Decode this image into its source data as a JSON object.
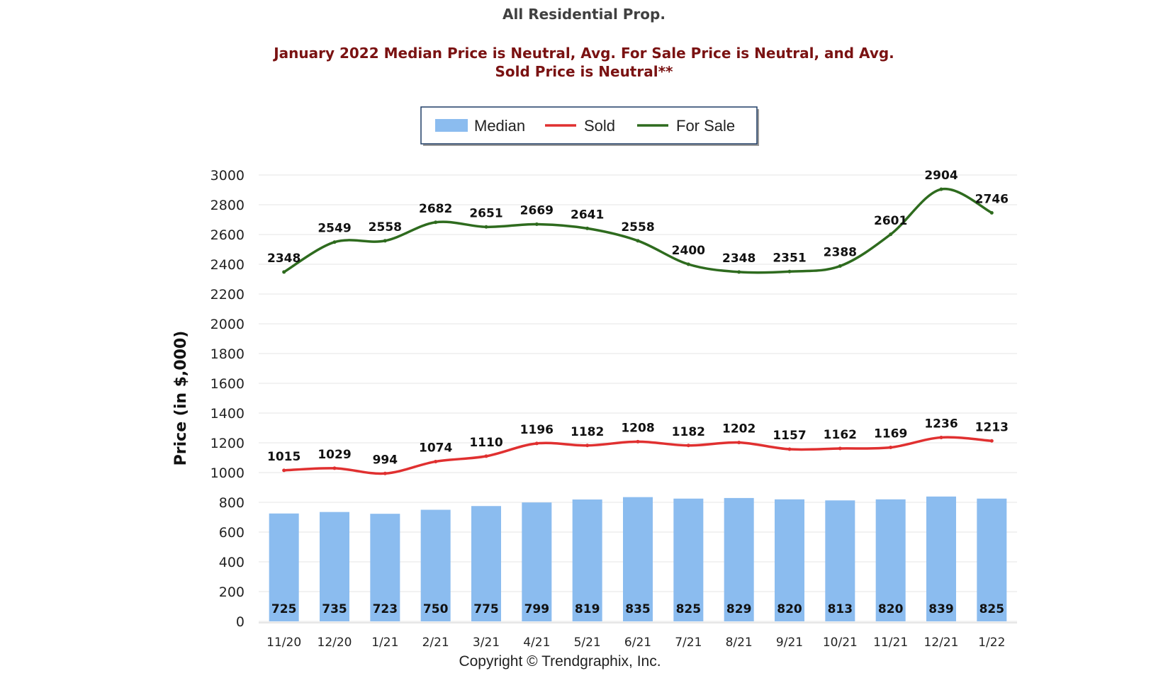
{
  "title": "All Residential Prop.",
  "subtitle_line1": "January 2022 Median Price is Neutral, Avg. For Sale Price is Neutral, and Avg.",
  "subtitle_line2": "Sold Price is Neutral**",
  "copyright": "Copyright © Trendgraphix, Inc.",
  "chart_data": {
    "type": "bar",
    "categories": [
      "11/20",
      "12/20",
      "1/21",
      "2/21",
      "3/21",
      "4/21",
      "5/21",
      "6/21",
      "7/21",
      "8/21",
      "9/21",
      "10/21",
      "11/21",
      "12/21",
      "1/22"
    ],
    "ylabel": "Price (in $,000)",
    "ylim": [
      0,
      3000
    ],
    "yticks": [
      0,
      200,
      400,
      600,
      800,
      1000,
      1200,
      1400,
      1600,
      1800,
      2000,
      2200,
      2400,
      2600,
      2800,
      3000
    ],
    "grid": true,
    "legend_position": "top-center",
    "series": [
      {
        "name": "Median",
        "type": "bar",
        "color": "#8bbcef",
        "values": [
          725,
          735,
          723,
          750,
          775,
          799,
          819,
          835,
          825,
          829,
          820,
          813,
          820,
          839,
          825
        ]
      },
      {
        "name": "Sold",
        "type": "line",
        "color": "#e03030",
        "values": [
          1015,
          1029,
          994,
          1074,
          1110,
          1196,
          1182,
          1208,
          1182,
          1202,
          1157,
          1162,
          1169,
          1236,
          1213
        ]
      },
      {
        "name": "For Sale",
        "type": "line",
        "color": "#2e6b1e",
        "values": [
          2348,
          2549,
          2558,
          2682,
          2651,
          2669,
          2641,
          2558,
          2400,
          2348,
          2351,
          2388,
          2601,
          2904,
          2746
        ]
      }
    ]
  }
}
